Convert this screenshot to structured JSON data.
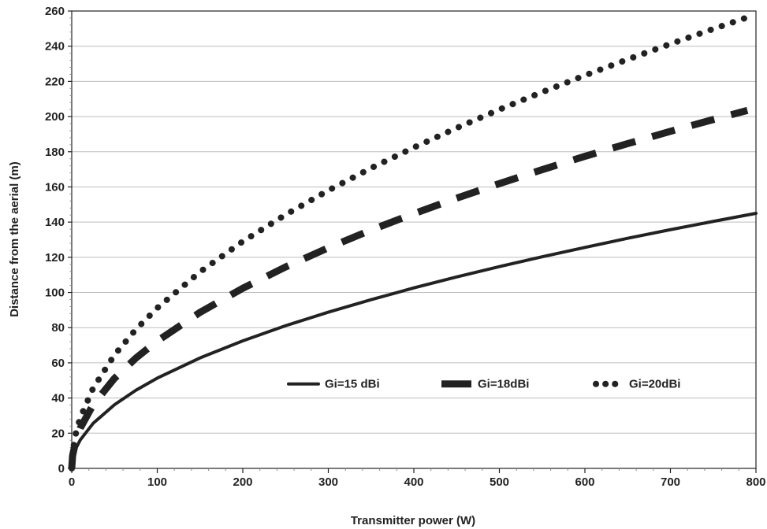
{
  "chart_data": {
    "type": "line",
    "xlabel": "Transmitter power  (W)",
    "ylabel": "Distance from the aerial  (m)",
    "xlim": [
      0,
      800
    ],
    "ylim": [
      0,
      260
    ],
    "x_ticks": [
      0,
      100,
      200,
      300,
      400,
      500,
      600,
      700,
      800
    ],
    "y_ticks": [
      0,
      20,
      40,
      60,
      80,
      100,
      120,
      140,
      160,
      180,
      200,
      220,
      240,
      260
    ],
    "grid": "horizontal",
    "legend_position": "center-right",
    "colors": {
      "line": "#222222",
      "grid": "#bdbdbd",
      "axis": "#222222"
    },
    "series": [
      {
        "name": "Gi=15 dBi",
        "style": "solid",
        "x": [
          0,
          1,
          5,
          10,
          25,
          50,
          75,
          100,
          150,
          200,
          250,
          300,
          350,
          400,
          450,
          500,
          550,
          600,
          650,
          700,
          750,
          800
        ],
        "y": [
          0,
          5.1,
          11.5,
          16.2,
          25.6,
          36.2,
          44.4,
          51.3,
          62.8,
          72.5,
          81.1,
          88.8,
          95.9,
          102.6,
          108.8,
          114.7,
          120.3,
          125.6,
          130.8,
          135.7,
          140.4,
          145
        ]
      },
      {
        "name": "Gi=18dBi",
        "style": "dashed",
        "x": [
          0,
          1,
          5,
          10,
          25,
          50,
          75,
          100,
          150,
          200,
          250,
          300,
          350,
          400,
          450,
          500,
          550,
          600,
          650,
          700,
          750,
          790
        ],
        "y": [
          0,
          7.2,
          16.2,
          22.9,
          36.2,
          51.2,
          62.7,
          72.4,
          88.7,
          102.4,
          114.5,
          125.4,
          135.5,
          144.8,
          153.6,
          161.9,
          169.8,
          177.4,
          184.6,
          191.6,
          198.3,
          203.5
        ]
      },
      {
        "name": "Gi=20dBi",
        "style": "dotted",
        "x": [
          0,
          1,
          5,
          10,
          25,
          50,
          75,
          100,
          150,
          200,
          250,
          300,
          350,
          400,
          450,
          500,
          550,
          600,
          650,
          700,
          750,
          790
        ],
        "y": [
          0,
          9.1,
          20.4,
          28.8,
          45.6,
          64.5,
          79,
          91.2,
          111.7,
          129,
          144.2,
          158,
          170.7,
          182.4,
          193.5,
          204,
          213.9,
          223.4,
          232.5,
          241.3,
          249.8,
          256.4
        ]
      }
    ]
  }
}
